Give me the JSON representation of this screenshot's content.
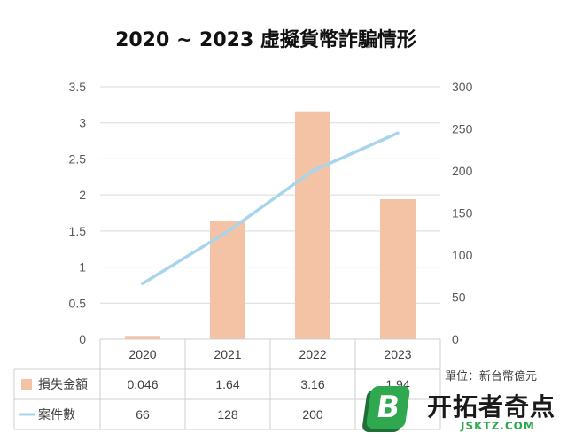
{
  "chart_data": {
    "type": "bar",
    "title": "2020 ~ 2023 虛擬貨幣詐騙情形",
    "categories": [
      "2020",
      "2021",
      "2022",
      "2023"
    ],
    "series": [
      {
        "name": "損失金額",
        "kind": "bar",
        "axis": "left",
        "color": "#f4c3a6",
        "values": [
          0.046,
          1.64,
          3.16,
          1.94
        ]
      },
      {
        "name": "案件數",
        "kind": "line",
        "axis": "right",
        "color": "#a8d4ec",
        "values": [
          66,
          128,
          200,
          245
        ]
      }
    ],
    "table_values": {
      "bar": [
        "0.046",
        "1.64",
        "3.16",
        "1.94"
      ],
      "line": [
        "66",
        "128",
        "200",
        ""
      ]
    },
    "ylim_left": [
      0,
      3.5
    ],
    "yticks_left": [
      "0",
      "0.5",
      "1",
      "1.5",
      "2",
      "2.5",
      "3",
      "3.5"
    ],
    "ylim_right": [
      0,
      300
    ],
    "yticks_right": [
      "0",
      "50",
      "100",
      "150",
      "200",
      "250",
      "300"
    ],
    "grid": true,
    "unit_note": "單位：新台幣億元"
  },
  "watermark": {
    "mark": "B",
    "text": "开拓者奇点",
    "subtext": "JSKTZ.COM"
  }
}
